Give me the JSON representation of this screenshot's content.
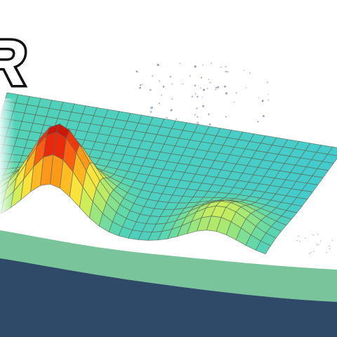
{
  "headline": {
    "text": "R"
  },
  "colors": {
    "background": "#ffffff",
    "banner_fill": "#2f4a68",
    "band_fill": "#79c49b",
    "mesh_line": "#5a6a55"
  },
  "chart_data": {
    "type": "surface",
    "grid": {
      "rows": 15,
      "cols": 30
    },
    "z_range": [
      0,
      1
    ],
    "peaks": [
      {
        "row": 2.5,
        "col": 8.0,
        "height": 1.0
      },
      {
        "row": 2.0,
        "col": 24.5,
        "height": 0.35
      }
    ],
    "colormap": [
      "#3ac6d8",
      "#62d9a8",
      "#9ee67a",
      "#d8ef52",
      "#ffe23a",
      "#ffb11e",
      "#ff6a12",
      "#e8200c",
      "#b00d0a"
    ],
    "grid_lines": true
  }
}
